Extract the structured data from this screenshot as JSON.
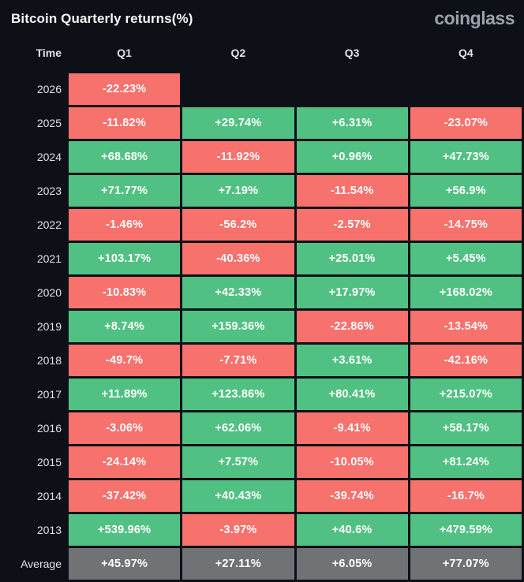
{
  "header": {
    "title": "Bitcoin Quarterly returns(%)",
    "logo": "coinglass"
  },
  "colors": {
    "background": "#0d1117",
    "positive": "#51c183",
    "negative": "#f7716d",
    "average": "#6f7376",
    "title-color": "#f5f6f8",
    "logo-color": "#9ba1ac",
    "label-color": "#dfe4ea",
    "cell-text": "#ffffff"
  },
  "table": {
    "columns": [
      "Time",
      "Q1",
      "Q2",
      "Q3",
      "Q4"
    ],
    "rows": [
      {
        "label": "2026",
        "values": [
          "-22.23%",
          null,
          null,
          null
        ]
      },
      {
        "label": "2025",
        "values": [
          "-11.82%",
          "+29.74%",
          "+6.31%",
          "-23.07%"
        ]
      },
      {
        "label": "2024",
        "values": [
          "+68.68%",
          "-11.92%",
          "+0.96%",
          "+47.73%"
        ]
      },
      {
        "label": "2023",
        "values": [
          "+71.77%",
          "+7.19%",
          "-11.54%",
          "+56.9%"
        ]
      },
      {
        "label": "2022",
        "values": [
          "-1.46%",
          "-56.2%",
          "-2.57%",
          "-14.75%"
        ]
      },
      {
        "label": "2021",
        "values": [
          "+103.17%",
          "-40.36%",
          "+25.01%",
          "+5.45%"
        ]
      },
      {
        "label": "2020",
        "values": [
          "-10.83%",
          "+42.33%",
          "+17.97%",
          "+168.02%"
        ]
      },
      {
        "label": "2019",
        "values": [
          "+8.74%",
          "+159.36%",
          "-22.86%",
          "-13.54%"
        ]
      },
      {
        "label": "2018",
        "values": [
          "-49.7%",
          "-7.71%",
          "+3.61%",
          "-42.16%"
        ]
      },
      {
        "label": "2017",
        "values": [
          "+11.89%",
          "+123.86%",
          "+80.41%",
          "+215.07%"
        ]
      },
      {
        "label": "2016",
        "values": [
          "-3.06%",
          "+62.06%",
          "-9.41%",
          "+58.17%"
        ]
      },
      {
        "label": "2015",
        "values": [
          "-24.14%",
          "+7.57%",
          "-10.05%",
          "+81.24%"
        ]
      },
      {
        "label": "2014",
        "values": [
          "-37.42%",
          "+40.43%",
          "-39.74%",
          "-16.7%"
        ]
      },
      {
        "label": "2013",
        "values": [
          "+539.96%",
          "-3.97%",
          "+40.6%",
          "+479.59%"
        ]
      },
      {
        "label": "Average",
        "values": [
          "+45.97%",
          "+27.11%",
          "+6.05%",
          "+77.07%"
        ]
      }
    ]
  },
  "chart_data": {
    "type": "heatmap",
    "title": "Bitcoin Quarterly returns(%)",
    "row_label_header": "Time",
    "columns": [
      "Q1",
      "Q2",
      "Q3",
      "Q4"
    ],
    "rows": [
      "2026",
      "2025",
      "2024",
      "2023",
      "2022",
      "2021",
      "2020",
      "2019",
      "2018",
      "2017",
      "2016",
      "2015",
      "2014",
      "2013",
      "Average"
    ],
    "values_pct": [
      [
        -22.23,
        null,
        null,
        null
      ],
      [
        -11.82,
        29.74,
        6.31,
        -23.07
      ],
      [
        68.68,
        -11.92,
        0.96,
        47.73
      ],
      [
        71.77,
        7.19,
        -11.54,
        56.9
      ],
      [
        -1.46,
        -56.2,
        -2.57,
        -14.75
      ],
      [
        103.17,
        -40.36,
        25.01,
        5.45
      ],
      [
        -10.83,
        42.33,
        17.97,
        168.02
      ],
      [
        8.74,
        159.36,
        -22.86,
        -13.54
      ],
      [
        -49.7,
        -7.71,
        3.61,
        -42.16
      ],
      [
        11.89,
        123.86,
        80.41,
        215.07
      ],
      [
        -3.06,
        62.06,
        -9.41,
        58.17
      ],
      [
        -24.14,
        7.57,
        -10.05,
        81.24
      ],
      [
        -37.42,
        40.43,
        -39.74,
        -16.7
      ],
      [
        539.96,
        -3.97,
        40.6,
        479.59
      ],
      [
        45.97,
        27.11,
        6.05,
        77.07
      ]
    ],
    "color_rule": "positive = green, negative = red, Average row = gray, missing = background",
    "legend": "off",
    "grid": "off"
  }
}
